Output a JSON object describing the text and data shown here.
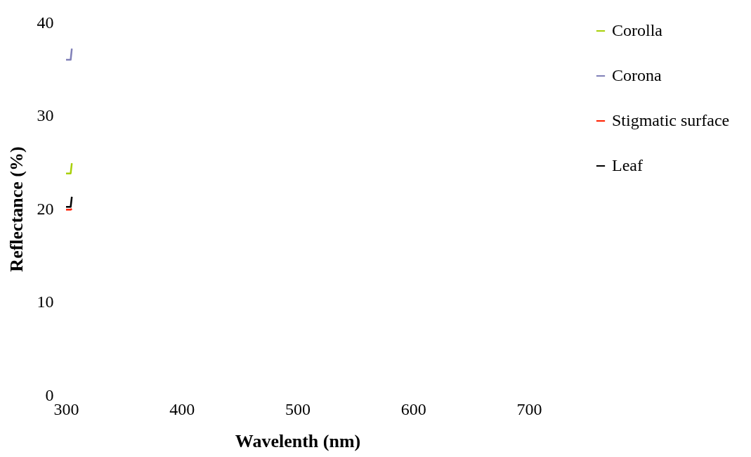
{
  "chart_data": {
    "type": "line",
    "xlabel": "Wavelenth (nm)",
    "ylabel": "Reflectance (%)",
    "xlim": [
      300,
      700
    ],
    "xticks": [
      300,
      400,
      500,
      600,
      700
    ],
    "ylim": [
      0,
      40
    ],
    "yticks": [
      0,
      10,
      20,
      30,
      40
    ],
    "grid": false,
    "legend": "right",
    "marker": "none",
    "line_style": "solid",
    "series": [
      {
        "name": "Corolla",
        "color": "#a8d008",
        "x": [
          300,
          304,
          305
        ],
        "values": [
          23.8,
          23.8,
          24.9
        ]
      },
      {
        "name": "Corona",
        "color": "#8080b8",
        "x": [
          300,
          304,
          305
        ],
        "values": [
          36.0,
          36.0,
          37.2
        ]
      },
      {
        "name": "Stigmatic surface",
        "color": "#ff2000",
        "x": [
          300,
          304,
          305
        ],
        "values": [
          19.9,
          19.9,
          20.0
        ]
      },
      {
        "name": "Leaf",
        "color": "#000000",
        "x": [
          300,
          304,
          305
        ],
        "values": [
          20.2,
          20.2,
          21.3
        ]
      }
    ]
  }
}
